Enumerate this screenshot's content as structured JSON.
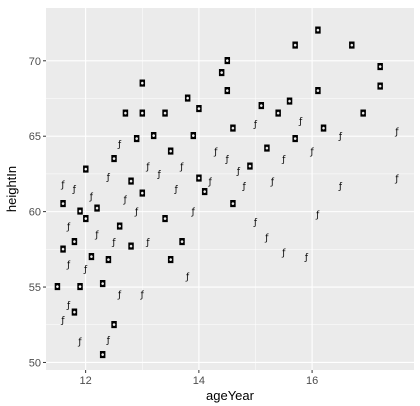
{
  "chart_data": {
    "type": "scatter",
    "title": "",
    "xlabel": "ageYear",
    "ylabel": "heightIn",
    "xlim": [
      11.3,
      17.8
    ],
    "ylim": [
      49.5,
      73.5
    ],
    "x_ticks": [
      12,
      14,
      16
    ],
    "y_ticks": [
      50,
      55,
      60,
      65,
      70
    ],
    "x_tick_labels": [
      "12",
      "14",
      "16"
    ],
    "y_tick_labels": [
      "50",
      "55",
      "60",
      "65",
      "70"
    ],
    "grid": true,
    "legend": "none",
    "colors": {
      "panel": "#ebebeb",
      "grid": "#ffffff",
      "points": "#000000",
      "text": "#4d4d4d"
    },
    "series": [
      {
        "name": "",
        "marker": "glyph labels (f / m)",
        "points": [
          {
            "x": 11.6,
            "y": 52.8,
            "label": "f"
          },
          {
            "x": 11.7,
            "y": 53.8,
            "label": "f"
          },
          {
            "x": 11.8,
            "y": 53.3,
            "label": "m"
          },
          {
            "x": 12.3,
            "y": 50.5,
            "label": "m"
          },
          {
            "x": 12.4,
            "y": 51.5,
            "label": "f"
          },
          {
            "x": 12.5,
            "y": 52.5,
            "label": "m"
          },
          {
            "x": 11.9,
            "y": 51.4,
            "label": "f"
          },
          {
            "x": 11.5,
            "y": 55.0,
            "label": "m"
          },
          {
            "x": 11.6,
            "y": 57.5,
            "label": "m"
          },
          {
            "x": 11.7,
            "y": 56.5,
            "label": "f"
          },
          {
            "x": 11.8,
            "y": 58.0,
            "label": "m"
          },
          {
            "x": 11.9,
            "y": 55.0,
            "label": "m"
          },
          {
            "x": 12.0,
            "y": 56.2,
            "label": "f"
          },
          {
            "x": 12.1,
            "y": 57.0,
            "label": "m"
          },
          {
            "x": 12.2,
            "y": 58.5,
            "label": "f"
          },
          {
            "x": 11.6,
            "y": 60.5,
            "label": "m"
          },
          {
            "x": 11.7,
            "y": 59.0,
            "label": "f"
          },
          {
            "x": 11.8,
            "y": 61.5,
            "label": "f"
          },
          {
            "x": 11.9,
            "y": 60.0,
            "label": "m"
          },
          {
            "x": 12.0,
            "y": 59.5,
            "label": "m"
          },
          {
            "x": 12.1,
            "y": 61.0,
            "label": "f"
          },
          {
            "x": 12.2,
            "y": 60.2,
            "label": "m"
          },
          {
            "x": 12.0,
            "y": 62.8,
            "label": "m"
          },
          {
            "x": 11.6,
            "y": 61.8,
            "label": "f"
          },
          {
            "x": 12.3,
            "y": 55.2,
            "label": "m"
          },
          {
            "x": 12.4,
            "y": 56.8,
            "label": "m"
          },
          {
            "x": 12.5,
            "y": 58.0,
            "label": "f"
          },
          {
            "x": 12.6,
            "y": 59.0,
            "label": "m"
          },
          {
            "x": 12.7,
            "y": 60.8,
            "label": "f"
          },
          {
            "x": 12.4,
            "y": 62.3,
            "label": "f"
          },
          {
            "x": 12.5,
            "y": 63.5,
            "label": "m"
          },
          {
            "x": 12.6,
            "y": 64.5,
            "label": "f"
          },
          {
            "x": 12.6,
            "y": 54.5,
            "label": "f"
          },
          {
            "x": 12.8,
            "y": 57.7,
            "label": "m"
          },
          {
            "x": 12.9,
            "y": 60.0,
            "label": "f"
          },
          {
            "x": 12.8,
            "y": 62.0,
            "label": "m"
          },
          {
            "x": 12.7,
            "y": 66.5,
            "label": "m"
          },
          {
            "x": 12.9,
            "y": 64.8,
            "label": "m"
          },
          {
            "x": 13.0,
            "y": 68.5,
            "label": "m"
          },
          {
            "x": 13.0,
            "y": 66.5,
            "label": "m"
          },
          {
            "x": 13.1,
            "y": 63.0,
            "label": "f"
          },
          {
            "x": 13.0,
            "y": 61.2,
            "label": "m"
          },
          {
            "x": 13.1,
            "y": 58.0,
            "label": "f"
          },
          {
            "x": 13.0,
            "y": 54.5,
            "label": "f"
          },
          {
            "x": 13.2,
            "y": 65.0,
            "label": "m"
          },
          {
            "x": 13.3,
            "y": 62.5,
            "label": "f"
          },
          {
            "x": 13.4,
            "y": 59.5,
            "label": "m"
          },
          {
            "x": 13.4,
            "y": 66.5,
            "label": "m"
          },
          {
            "x": 13.5,
            "y": 64.0,
            "label": "m"
          },
          {
            "x": 13.6,
            "y": 61.5,
            "label": "f"
          },
          {
            "x": 13.5,
            "y": 56.8,
            "label": "m"
          },
          {
            "x": 13.7,
            "y": 58.0,
            "label": "m"
          },
          {
            "x": 13.8,
            "y": 55.7,
            "label": "f"
          },
          {
            "x": 13.7,
            "y": 63.0,
            "label": "f"
          },
          {
            "x": 13.8,
            "y": 67.5,
            "label": "m"
          },
          {
            "x": 13.9,
            "y": 65.0,
            "label": "m"
          },
          {
            "x": 13.9,
            "y": 60.0,
            "label": "f"
          },
          {
            "x": 14.0,
            "y": 62.2,
            "label": "m"
          },
          {
            "x": 14.1,
            "y": 61.3,
            "label": "m"
          },
          {
            "x": 14.2,
            "y": 62.0,
            "label": "f"
          },
          {
            "x": 14.0,
            "y": 66.8,
            "label": "m"
          },
          {
            "x": 14.3,
            "y": 64.0,
            "label": "f"
          },
          {
            "x": 14.4,
            "y": 69.2,
            "label": "m"
          },
          {
            "x": 14.5,
            "y": 70.0,
            "label": "m"
          },
          {
            "x": 14.5,
            "y": 68.0,
            "label": "m"
          },
          {
            "x": 14.6,
            "y": 65.5,
            "label": "m"
          },
          {
            "x": 14.5,
            "y": 63.5,
            "label": "f"
          },
          {
            "x": 14.7,
            "y": 62.7,
            "label": "f"
          },
          {
            "x": 14.6,
            "y": 60.5,
            "label": "m"
          },
          {
            "x": 14.8,
            "y": 61.7,
            "label": "f"
          },
          {
            "x": 14.9,
            "y": 63.0,
            "label": "m"
          },
          {
            "x": 15.0,
            "y": 59.3,
            "label": "f"
          },
          {
            "x": 15.0,
            "y": 65.8,
            "label": "f"
          },
          {
            "x": 15.1,
            "y": 67.0,
            "label": "m"
          },
          {
            "x": 15.2,
            "y": 64.2,
            "label": "m"
          },
          {
            "x": 15.3,
            "y": 62.0,
            "label": "f"
          },
          {
            "x": 15.2,
            "y": 58.3,
            "label": "f"
          },
          {
            "x": 15.4,
            "y": 66.5,
            "label": "m"
          },
          {
            "x": 15.5,
            "y": 63.5,
            "label": "f"
          },
          {
            "x": 15.5,
            "y": 57.3,
            "label": "f"
          },
          {
            "x": 15.6,
            "y": 67.3,
            "label": "m"
          },
          {
            "x": 15.7,
            "y": 64.8,
            "label": "m"
          },
          {
            "x": 15.8,
            "y": 66.0,
            "label": "f"
          },
          {
            "x": 15.9,
            "y": 57.0,
            "label": "f"
          },
          {
            "x": 15.7,
            "y": 71.0,
            "label": "m"
          },
          {
            "x": 16.0,
            "y": 64.0,
            "label": "f"
          },
          {
            "x": 16.1,
            "y": 68.0,
            "label": "m"
          },
          {
            "x": 16.1,
            "y": 72.0,
            "label": "m"
          },
          {
            "x": 16.2,
            "y": 65.5,
            "label": "m"
          },
          {
            "x": 16.1,
            "y": 59.8,
            "label": "f"
          },
          {
            "x": 16.5,
            "y": 65.0,
            "label": "f"
          },
          {
            "x": 16.5,
            "y": 61.7,
            "label": "f"
          },
          {
            "x": 16.7,
            "y": 71.0,
            "label": "m"
          },
          {
            "x": 16.9,
            "y": 66.5,
            "label": "m"
          },
          {
            "x": 17.2,
            "y": 68.3,
            "label": "m"
          },
          {
            "x": 17.2,
            "y": 69.6,
            "label": "m"
          },
          {
            "x": 17.5,
            "y": 65.3,
            "label": "f"
          },
          {
            "x": 17.5,
            "y": 62.2,
            "label": "f"
          }
        ]
      }
    ]
  }
}
